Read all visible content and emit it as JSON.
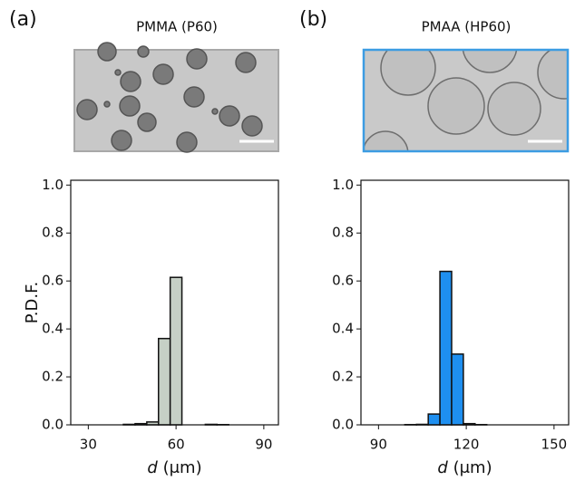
{
  "chart_data": [
    {
      "type": "histogram",
      "panel": "(a)",
      "title": "PMMA (P60)",
      "ylabel": "P.D.F.",
      "xlabel": {
        "symbol": "d",
        "unit": "(μm)"
      },
      "bins": [
        42,
        46,
        50,
        54,
        58,
        62,
        66,
        70,
        74,
        78
      ],
      "values": [
        0.002,
        0.005,
        0.012,
        0.36,
        0.615,
        0,
        0,
        0.002,
        0.001
      ],
      "color": "#c6d0c6",
      "xlim": [
        24,
        95
      ],
      "xticks": [
        30,
        60,
        90
      ],
      "ylim": [
        0,
        1.02
      ],
      "yticks": [
        {
          "value": 0,
          "label": "0.0"
        },
        {
          "value": 0.2,
          "label": "0.2"
        },
        {
          "value": 0.4,
          "label": "0.4"
        },
        {
          "value": 0.6,
          "label": "0.6"
        },
        {
          "value": 0.8,
          "label": "0.8"
        },
        {
          "value": 1,
          "label": "1.0"
        }
      ]
    },
    {
      "type": "histogram",
      "panel": "(b)",
      "title": "PMAA (HP60)",
      "xlabel": {
        "symbol": "d",
        "unit": "(μm)"
      },
      "bins": [
        99,
        103,
        107,
        111,
        115,
        119,
        123,
        127
      ],
      "values": [
        0.001,
        0.002,
        0.045,
        0.64,
        0.295,
        0.005,
        0.001
      ],
      "color": "#1e8ff0",
      "xlim": [
        84,
        155
      ],
      "xticks": [
        90,
        120,
        150
      ],
      "ylim": [
        0,
        1.02
      ],
      "yticks": [
        {
          "value": 0,
          "label": "0.0"
        },
        {
          "value": 0.2,
          "label": "0.2"
        },
        {
          "value": 0.4,
          "label": "0.4"
        },
        {
          "value": 0.6,
          "label": "0.6"
        },
        {
          "value": 0.8,
          "label": "0.8"
        },
        {
          "value": 1,
          "label": "1.0"
        }
      ]
    }
  ]
}
